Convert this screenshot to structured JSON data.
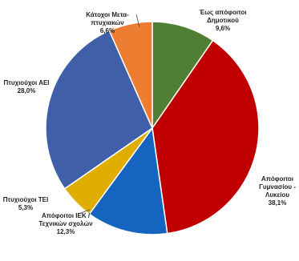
{
  "chart_data": {
    "type": "pie",
    "title": "",
    "start_angle_deg": 0,
    "direction": "clockwise",
    "slices": [
      {
        "label": [
          "Έως απόφοιτοι",
          "Δημοτικού"
        ],
        "value_text": "9,6%",
        "value": 9.6,
        "color": "#4f7f33"
      },
      {
        "label": [
          "Απόφοιτοι",
          "Γυμνασίου  -",
          "Λυκείου"
        ],
        "value_text": "38,1%",
        "value": 38.1,
        "color": "#c00000"
      },
      {
        "label": [
          "Απόφοιτοι ΙΕΚ /",
          "Τεχνικών  σχολών"
        ],
        "value_text": "12,3%",
        "value": 12.3,
        "color": "#1565c0"
      },
      {
        "label": [
          "Πτυχιούχοι  ΤΕΙ"
        ],
        "value_text": "5,3%",
        "value": 5.3,
        "color": "#e0ae00"
      },
      {
        "label": [
          "Πτυχιούχοι  ΑΕΙ"
        ],
        "value_text": "28,0%",
        "value": 28.0,
        "color": "#3f60a8"
      },
      {
        "label": [
          "Κάτοχοι Μετα-",
          "πτυχιακών"
        ],
        "value_text": "6,6%",
        "value": 6.6,
        "color": "#ed7d31"
      }
    ]
  }
}
